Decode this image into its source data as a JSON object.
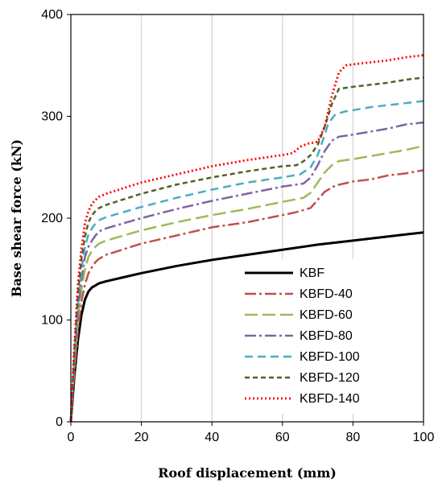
{
  "chart_data": {
    "type": "line",
    "title": "",
    "xlabel": "Roof displacement (mm)",
    "ylabel": "Base shear force (kN)",
    "xlim": [
      0,
      100
    ],
    "ylim": [
      0,
      400
    ],
    "xticks": [
      0,
      20,
      40,
      60,
      80,
      100
    ],
    "yticks": [
      0,
      100,
      200,
      300,
      400
    ],
    "grid": "vertical",
    "legend_position": "bottom-right",
    "series": [
      {
        "name": "KBF",
        "color": "#000000",
        "dash": "solid",
        "x": [
          0,
          1,
          2,
          3,
          4,
          5,
          6,
          8,
          10,
          15,
          20,
          30,
          40,
          50,
          60,
          70,
          80,
          90,
          100
        ],
        "y": [
          0,
          45,
          80,
          105,
          120,
          128,
          132,
          136,
          138,
          142,
          146,
          153,
          159,
          164,
          169,
          174,
          178,
          182,
          186
        ]
      },
      {
        "name": "KBFD-40",
        "color": "#c0504d",
        "dash": "dashdot",
        "x": [
          0,
          1,
          2,
          3,
          4,
          5,
          6,
          7,
          8,
          10,
          20,
          30,
          40,
          50,
          60,
          64,
          68,
          70,
          72,
          75,
          80,
          85,
          90,
          95,
          98,
          100
        ],
        "y": [
          0,
          50,
          90,
          118,
          135,
          146,
          152,
          157,
          160,
          164,
          175,
          183,
          191,
          196,
          203,
          206,
          210,
          218,
          226,
          232,
          236,
          238,
          242,
          244,
          246,
          247
        ]
      },
      {
        "name": "KBFD-60",
        "color": "#9bbb59",
        "dash": "longdash",
        "x": [
          0,
          1,
          2,
          3,
          4,
          5,
          6,
          7,
          8,
          10,
          20,
          30,
          40,
          50,
          60,
          66,
          68,
          70,
          72,
          74,
          76,
          80,
          85,
          90,
          95,
          100
        ],
        "y": [
          0,
          55,
          100,
          130,
          150,
          162,
          168,
          172,
          175,
          178,
          188,
          196,
          203,
          209,
          216,
          220,
          225,
          235,
          245,
          252,
          256,
          258,
          261,
          264,
          267,
          271
        ]
      },
      {
        "name": "KBFD-80",
        "color": "#8064a2",
        "dash": "dashdot",
        "x": [
          0,
          1,
          2,
          3,
          4,
          5,
          6,
          7,
          8,
          10,
          20,
          30,
          40,
          50,
          60,
          66,
          68,
          70,
          72,
          74,
          76,
          80,
          85,
          90,
          95,
          100
        ],
        "y": [
          0,
          60,
          108,
          140,
          162,
          172,
          178,
          183,
          187,
          190,
          200,
          209,
          217,
          224,
          231,
          234,
          240,
          252,
          266,
          276,
          280,
          282,
          285,
          288,
          292,
          294
        ]
      },
      {
        "name": "KBFD-100",
        "color": "#4bacc6",
        "dash": "dash",
        "x": [
          0,
          1,
          2,
          3,
          4,
          5,
          6,
          7,
          8,
          10,
          20,
          30,
          40,
          50,
          60,
          65,
          68,
          70,
          72,
          73,
          75,
          78,
          80,
          85,
          90,
          95,
          100
        ],
        "y": [
          0,
          65,
          115,
          150,
          172,
          184,
          190,
          195,
          198,
          201,
          211,
          220,
          228,
          235,
          240,
          243,
          250,
          262,
          282,
          293,
          302,
          305,
          306,
          309,
          311,
          313,
          315
        ]
      },
      {
        "name": "KBFD-120",
        "color": "#4f6228",
        "dash": "shortdash",
        "x": [
          0,
          1,
          2,
          3,
          4,
          5,
          6,
          7,
          8,
          10,
          20,
          30,
          40,
          50,
          60,
          64,
          66,
          68,
          70,
          72,
          74,
          76,
          80,
          85,
          90,
          95,
          100
        ],
        "y": [
          0,
          70,
          125,
          160,
          182,
          196,
          203,
          207,
          210,
          213,
          224,
          233,
          240,
          246,
          251,
          252,
          256,
          262,
          272,
          290,
          312,
          327,
          329,
          331,
          333,
          336,
          338
        ]
      },
      {
        "name": "KBFD-140",
        "color": "#ff0000",
        "dash": "dot",
        "x": [
          0,
          1,
          2,
          3,
          4,
          5,
          6,
          7,
          8,
          10,
          20,
          30,
          40,
          50,
          60,
          63,
          65,
          67,
          70,
          72,
          74,
          76,
          78,
          80,
          85,
          90,
          95,
          100
        ],
        "y": [
          0,
          75,
          135,
          170,
          195,
          207,
          214,
          218,
          221,
          224,
          235,
          243,
          251,
          257,
          262,
          264,
          270,
          273,
          275,
          290,
          320,
          343,
          350,
          351,
          353,
          355,
          358,
          360
        ]
      }
    ]
  }
}
